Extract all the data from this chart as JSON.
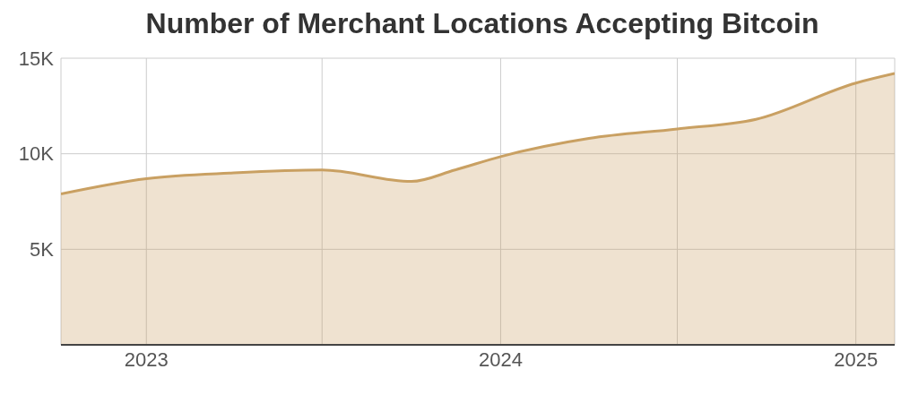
{
  "chart_data": {
    "type": "area",
    "title": "Number of Merchant Locations Accepting Bitcoin",
    "x": [
      "2022-10-05",
      "2023-01-01",
      "2023-04-01",
      "2023-07-01",
      "2023-10-01",
      "2023-11-15",
      "2024-01-01",
      "2024-04-01",
      "2024-07-01",
      "2024-09-20",
      "2025-01-01",
      "2025-02-10"
    ],
    "series": [
      {
        "color": "#c9a062",
        "values": [
          7900,
          8700,
          9000,
          9150,
          8550,
          9150,
          9850,
          10800,
          11300,
          11800,
          13700,
          14200
        ]
      }
    ],
    "xlim": [
      "2022-10-05",
      "2025-02-10"
    ],
    "xticks": [
      {
        "value": "2023-01-01",
        "label": "2023"
      },
      {
        "value": "2023-07-01",
        "label": null
      },
      {
        "value": "2024-01-01",
        "label": "2024"
      },
      {
        "value": "2024-07-01",
        "label": null
      },
      {
        "value": "2025-01-01",
        "label": "2025"
      }
    ],
    "ylim": [
      0,
      15000
    ],
    "yticks": [
      {
        "value": 5000,
        "label": "5K"
      },
      {
        "value": 10000,
        "label": "10K"
      },
      {
        "value": 15000,
        "label": "15K"
      }
    ],
    "grid": true,
    "marker": "none",
    "line_style": "solid"
  }
}
